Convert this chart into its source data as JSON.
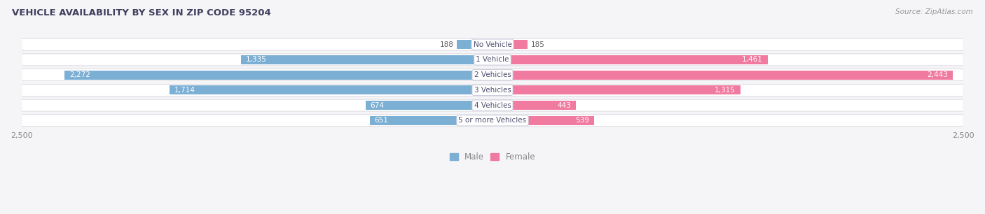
{
  "title": "VEHICLE AVAILABILITY BY SEX IN ZIP CODE 95204",
  "source": "Source: ZipAtlas.com",
  "categories": [
    "No Vehicle",
    "1 Vehicle",
    "2 Vehicles",
    "3 Vehicles",
    "4 Vehicles",
    "5 or more Vehicles"
  ],
  "male_values": [
    188,
    1335,
    2272,
    1714,
    674,
    651
  ],
  "female_values": [
    185,
    1461,
    2443,
    1315,
    443,
    539
  ],
  "male_color": "#7bafd4",
  "female_color": "#f07aa0",
  "row_bg_color": "#e8e8ee",
  "axis_max": 2500,
  "title_color": "#404060",
  "source_color": "#999999",
  "label_color_inner": "#ffffff",
  "label_color_outer": "#666666",
  "center_label_color": "#505070",
  "tick_label_color": "#888888",
  "legend_male_label": "Male",
  "legend_female_label": "Female",
  "inner_threshold": 350,
  "bg_color": "#f5f5f8"
}
